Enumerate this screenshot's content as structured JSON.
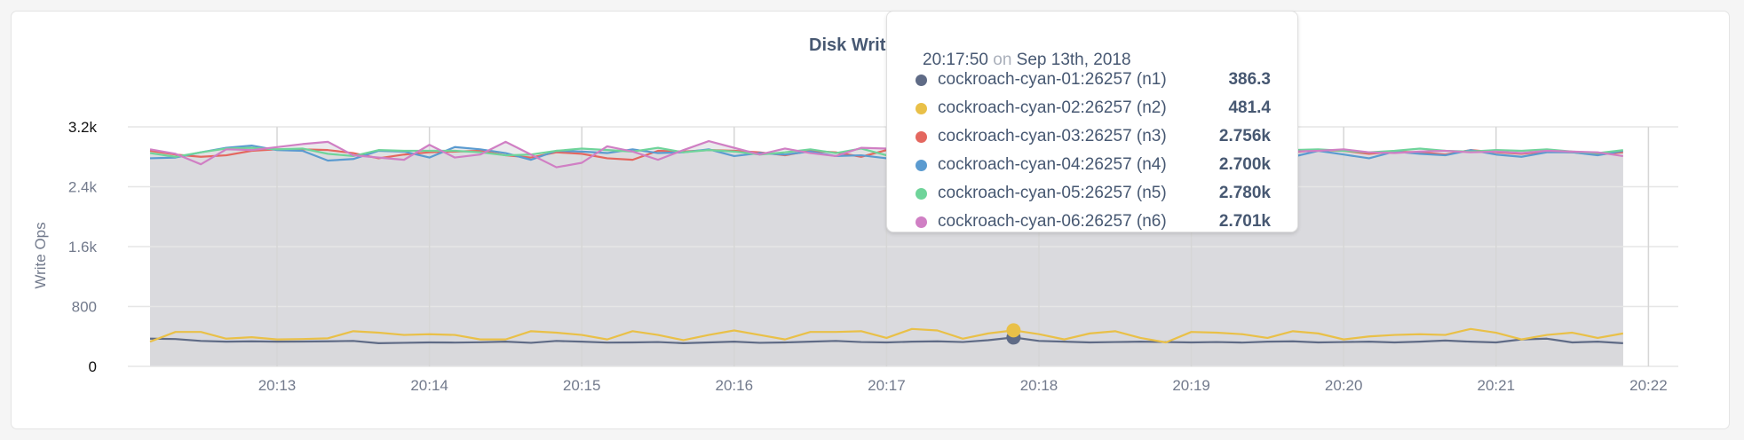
{
  "chart_data": {
    "type": "line",
    "title": "Disk Write Ops",
    "ylabel": "Write Ops",
    "ylim": [
      0,
      3200
    ],
    "yticks": [
      "0",
      "800",
      "1.6k",
      "2.4k",
      "3.2k"
    ],
    "ytick_values": [
      0,
      800,
      1600,
      2400,
      3200
    ],
    "xticks": [
      "20:13",
      "20:14",
      "20:15",
      "20:16",
      "20:17",
      "20:18",
      "20:19",
      "20:20",
      "20:21",
      "20:22"
    ],
    "x_start": "20:12:10",
    "x_interval_seconds": 10,
    "x_end_axis": "20:22:10",
    "grid": true,
    "area_fill": "#d9d9dc",
    "series": [
      {
        "name": "cockroach-cyan-01:26257 (n1)",
        "color": "#5f6b86",
        "values": [
          370,
          365,
          340,
          330,
          335,
          330,
          332,
          335,
          340,
          310,
          315,
          320,
          318,
          322,
          330,
          315,
          340,
          330,
          318,
          320,
          325,
          310,
          320,
          330,
          315,
          320,
          330,
          340,
          325,
          320,
          330,
          335,
          325,
          350,
          386.3,
          340,
          330,
          320,
          325,
          330,
          325,
          320,
          325,
          318,
          330,
          335,
          320,
          325,
          330,
          320,
          330,
          345,
          330,
          320,
          360,
          370,
          320,
          330,
          310
        ]
      },
      {
        "name": "cockroach-cyan-02:26257 (n2)",
        "color": "#e9c048",
        "values": [
          330,
          460,
          460,
          370,
          390,
          360,
          365,
          375,
          470,
          450,
          420,
          430,
          420,
          360,
          360,
          470,
          450,
          420,
          360,
          470,
          420,
          350,
          420,
          480,
          420,
          360,
          460,
          460,
          470,
          380,
          500,
          480,
          370,
          440,
          481.4,
          430,
          360,
          440,
          470,
          380,
          320,
          460,
          450,
          430,
          380,
          470,
          440,
          360,
          400,
          420,
          430,
          420,
          500,
          450,
          360,
          420,
          450,
          380,
          440
        ]
      },
      {
        "name": "cockroach-cyan-03:26257 (n3)",
        "color": "#e4675f",
        "values": [
          2880,
          2830,
          2800,
          2820,
          2880,
          2900,
          2900,
          2890,
          2850,
          2780,
          2830,
          2860,
          2870,
          2880,
          2820,
          2790,
          2860,
          2840,
          2780,
          2760,
          2880,
          2870,
          2890,
          2880,
          2860,
          2820,
          2880,
          2860,
          2800,
          2890,
          2860,
          2830,
          2880,
          2860,
          2756,
          2810,
          2870,
          2850,
          2860,
          2880,
          2840,
          2880,
          2860,
          2820,
          2870,
          2860,
          2890,
          2880,
          2840,
          2870,
          2860,
          2830,
          2890,
          2860,
          2840,
          2870,
          2860,
          2830,
          2860
        ]
      },
      {
        "name": "cockroach-cyan-04:26257 (n4)",
        "color": "#5b9bd0",
        "values": [
          2780,
          2790,
          2860,
          2920,
          2950,
          2890,
          2880,
          2750,
          2770,
          2880,
          2870,
          2790,
          2930,
          2900,
          2850,
          2760,
          2880,
          2870,
          2850,
          2900,
          2850,
          2860,
          2900,
          2810,
          2850,
          2830,
          2870,
          2810,
          2820,
          2780,
          2830,
          2860,
          2760,
          2740,
          2700,
          2880,
          2780,
          2850,
          2780,
          2790,
          2880,
          2830,
          2760,
          2860,
          2840,
          2800,
          2880,
          2830,
          2780,
          2870,
          2840,
          2820,
          2890,
          2830,
          2800,
          2860,
          2860,
          2820,
          2880
        ]
      },
      {
        "name": "cockroach-cyan-05:26257 (n5)",
        "color": "#6fd49a",
        "values": [
          2850,
          2800,
          2860,
          2910,
          2920,
          2900,
          2910,
          2840,
          2810,
          2890,
          2880,
          2880,
          2880,
          2860,
          2820,
          2830,
          2880,
          2910,
          2890,
          2870,
          2920,
          2860,
          2890,
          2870,
          2830,
          2860,
          2900,
          2850,
          2910,
          2820,
          2880,
          2950,
          2850,
          2900,
          2780,
          3000,
          2890,
          2870,
          2850,
          2880,
          2910,
          2850,
          2870,
          2880,
          2860,
          2890,
          2900,
          2880,
          2860,
          2880,
          2910,
          2880,
          2870,
          2890,
          2880,
          2900,
          2870,
          2850,
          2890
        ]
      },
      {
        "name": "cockroach-cyan-06:26257 (n6)",
        "color": "#d07fc4",
        "values": [
          2900,
          2840,
          2700,
          2900,
          2890,
          2930,
          2970,
          3000,
          2820,
          2790,
          2760,
          2960,
          2790,
          2830,
          3000,
          2830,
          2660,
          2720,
          2940,
          2870,
          2760,
          2890,
          3010,
          2920,
          2830,
          2910,
          2850,
          2810,
          2920,
          2910,
          2900,
          2830,
          3050,
          2750,
          2701,
          2860,
          2870,
          2850,
          2840,
          2830,
          2860,
          2890,
          2850,
          2860,
          2830,
          2870,
          2880,
          2900,
          2860,
          2850,
          2870,
          2880,
          2860,
          2870,
          2850,
          2880,
          2870,
          2860,
          2810
        ]
      }
    ]
  },
  "tooltip": {
    "time": "20:17:50",
    "on": "on",
    "date": "Sep 13th, 2018",
    "hover_index": 34,
    "rows": [
      {
        "name": "cockroach-cyan-01:26257 (n1)",
        "value": "386.3",
        "color": "#5f6b86"
      },
      {
        "name": "cockroach-cyan-02:26257 (n2)",
        "value": "481.4",
        "color": "#e9c048"
      },
      {
        "name": "cockroach-cyan-03:26257 (n3)",
        "value": "2.756k",
        "color": "#e4675f"
      },
      {
        "name": "cockroach-cyan-04:26257 (n4)",
        "value": "2.700k",
        "color": "#5b9bd0"
      },
      {
        "name": "cockroach-cyan-05:26257 (n5)",
        "value": "2.780k",
        "color": "#6fd49a"
      },
      {
        "name": "cockroach-cyan-06:26257 (n6)",
        "value": "2.701k",
        "color": "#d07fc4"
      }
    ]
  }
}
